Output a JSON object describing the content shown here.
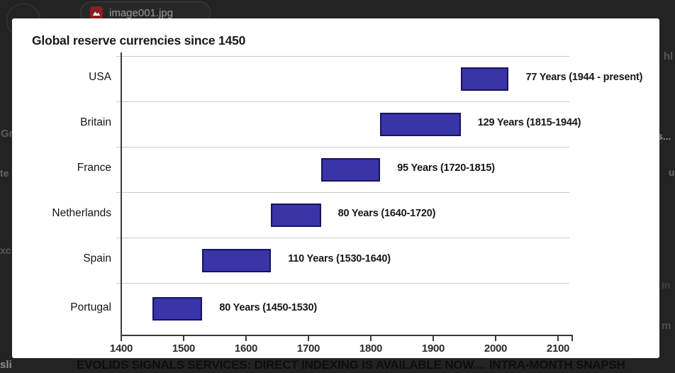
{
  "overlay": {
    "attachment_chip": {
      "filename": "image001.jpg",
      "icon": "image-icon"
    },
    "fragments_left": [
      "Gr",
      "te",
      "xc",
      "sli"
    ],
    "fragments_right": [
      "hl",
      "s...",
      "u",
      "in",
      "m"
    ],
    "bottom_ticker": "EVOLIDS SIGNALS SERVICES: DIRECT INDEXING IS AVAILABLE NOW.... INTRA-MONTH SNAPSH"
  },
  "chart_data": {
    "type": "bar",
    "orientation": "horizontal-gantt",
    "title": "Global reserve currencies since 1450",
    "categories": [
      "USA",
      "Britain",
      "France",
      "Netherlands",
      "Spain",
      "Portugal"
    ],
    "bars": [
      {
        "country": "USA",
        "start": 1944,
        "end": 2021,
        "label": "77 Years (1944 - present)"
      },
      {
        "country": "Britain",
        "start": 1815,
        "end": 1944,
        "label": "129 Years (1815-1944)"
      },
      {
        "country": "France",
        "start": 1720,
        "end": 1815,
        "label": "95 Years (1720-1815)"
      },
      {
        "country": "Netherlands",
        "start": 1640,
        "end": 1720,
        "label": "80 Years (1640-1720)"
      },
      {
        "country": "Spain",
        "start": 1530,
        "end": 1640,
        "label": "110 Years (1530-1640)"
      },
      {
        "country": "Portugal",
        "start": 1450,
        "end": 1530,
        "label": "80 Years (1450-1530)"
      }
    ],
    "x_ticks": [
      1400,
      1500,
      1600,
      1700,
      1800,
      1900,
      2000,
      2100
    ],
    "xlim": [
      1400,
      2115
    ],
    "xlabel": "",
    "ylabel": "",
    "grid": "row-separators",
    "legend": "none",
    "bar_color": "#3934a7",
    "bar_border_color": "#181260"
  }
}
